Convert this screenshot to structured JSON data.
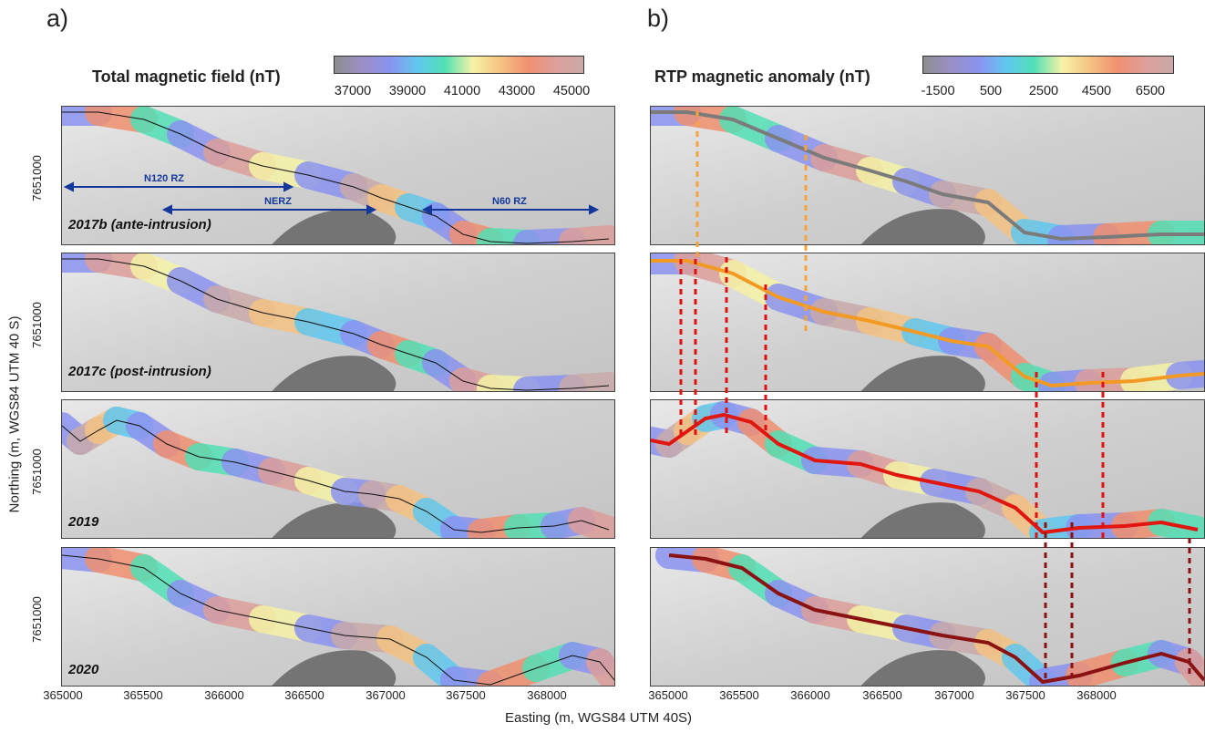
{
  "panels": {
    "a": {
      "letter": "a)",
      "colorbar_title": "Total magnetic field (nT)",
      "colorbar_ticks": [
        "37000",
        "39000",
        "41000",
        "43000",
        "45000"
      ]
    },
    "b": {
      "letter": "b)",
      "colorbar_title": "RTP magnetic anomaly (nT)",
      "colorbar_ticks": [
        "-1500",
        "500",
        "2500",
        "4500",
        "6500"
      ]
    }
  },
  "surveys": [
    "2017b (ante-intrusion)",
    "2017c (post-intrusion)",
    "2019",
    "2020"
  ],
  "northing_tick": "7651000",
  "easting_ticks": [
    "365000",
    "365500",
    "366000",
    "366500",
    "367000",
    "367500",
    "368000"
  ],
  "axis_titles": {
    "y": "Northing (m, WGS84 UTM 40 S)",
    "x": "Easting (m, WGS84 UTM 40S)"
  },
  "zones": [
    {
      "label": "N120 RZ"
    },
    {
      "label": "NERZ"
    },
    {
      "label": "N60 RZ"
    }
  ],
  "colors": {
    "colormap": [
      "#8e8e8e",
      "#9a8fc6",
      "#8b93f0",
      "#60c8f0",
      "#52e0b5",
      "#f6f3a6",
      "#f5c383",
      "#f09070",
      "#dd9f9a",
      "#c9aaa8"
    ],
    "line_2017b": "#7b7b7b",
    "line_2017c": "#f39a24",
    "line_2019": "#e0160f",
    "line_2020": "#8a1212",
    "dash_orange": "#f5a43a",
    "dash_red": "#e01010",
    "dash_darkred": "#8b1010",
    "zone_arrow": "#13389a"
  }
}
